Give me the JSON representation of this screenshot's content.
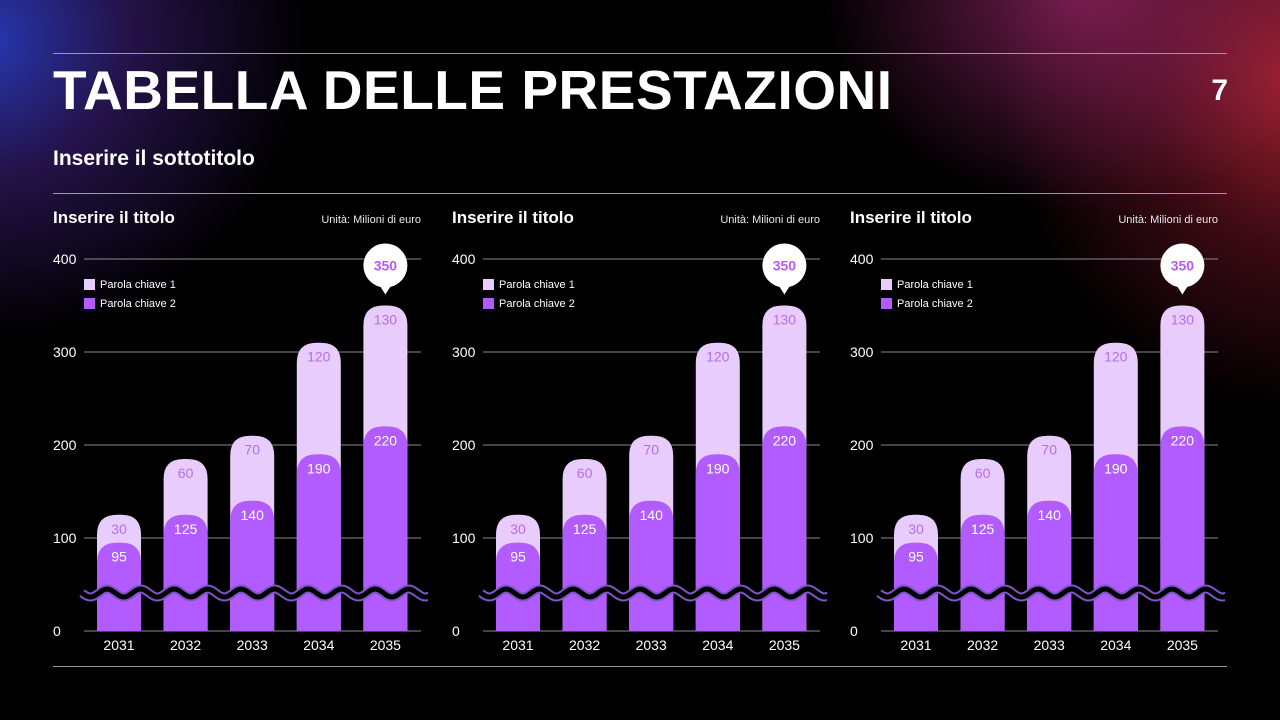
{
  "header": {
    "title": "TABELLA DELLE PRESTAZIONI",
    "page_number": "7",
    "subtitle": "Inserire il sottotitolo"
  },
  "colors": {
    "series1": "#e8cdfc",
    "series2": "#b25cff",
    "label_on_light": "#b56ee6",
    "background": "#000000"
  },
  "chart_data": [
    {
      "type": "bar",
      "stacked": true,
      "title": "Inserire il titolo",
      "unit": "Unità: Milioni di euro",
      "categories": [
        "2031",
        "2032",
        "2033",
        "2034",
        "2035"
      ],
      "series": [
        {
          "name": "Parola chiave 1",
          "values": [
            30,
            60,
            70,
            120,
            130
          ]
        },
        {
          "name": "Parola chiave 2",
          "values": [
            95,
            125,
            140,
            190,
            220
          ]
        }
      ],
      "yticks": [
        "0",
        "100",
        "200",
        "300",
        "400"
      ],
      "ylim": [
        0,
        400
      ],
      "axis_break": true,
      "grid": true,
      "legend": "top-left",
      "callout": {
        "category": "2035",
        "label": "350"
      }
    },
    {
      "type": "bar",
      "stacked": true,
      "title": "Inserire il titolo",
      "unit": "Unità: Milioni di euro",
      "categories": [
        "2031",
        "2032",
        "2033",
        "2034",
        "2035"
      ],
      "series": [
        {
          "name": "Parola chiave 1",
          "values": [
            30,
            60,
            70,
            120,
            130
          ]
        },
        {
          "name": "Parola chiave 2",
          "values": [
            95,
            125,
            140,
            190,
            220
          ]
        }
      ],
      "yticks": [
        "0",
        "100",
        "200",
        "300",
        "400"
      ],
      "ylim": [
        0,
        400
      ],
      "axis_break": true,
      "grid": true,
      "legend": "top-left",
      "callout": {
        "category": "2035",
        "label": "350"
      }
    },
    {
      "type": "bar",
      "stacked": true,
      "title": "Inserire il titolo",
      "unit": "Unità: Milioni di euro",
      "categories": [
        "2031",
        "2032",
        "2033",
        "2034",
        "2035"
      ],
      "series": [
        {
          "name": "Parola chiave 1",
          "values": [
            30,
            60,
            70,
            120,
            130
          ]
        },
        {
          "name": "Parola chiave 2",
          "values": [
            95,
            125,
            140,
            190,
            220
          ]
        }
      ],
      "yticks": [
        "0",
        "100",
        "200",
        "300",
        "400"
      ],
      "ylim": [
        0,
        400
      ],
      "axis_break": true,
      "grid": true,
      "legend": "top-left",
      "callout": {
        "category": "2035",
        "label": "350"
      }
    }
  ]
}
